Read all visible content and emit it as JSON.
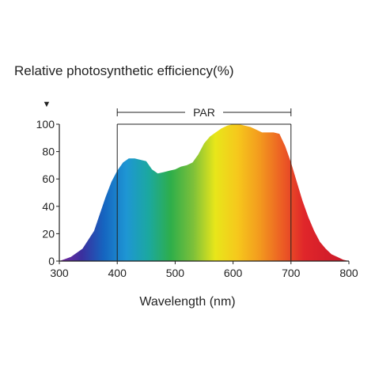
{
  "chart_data": {
    "type": "area",
    "title": "Relative photosynthetic efficiency(%)",
    "xlabel": "Wavelength (nm)",
    "ylabel": "",
    "xlim": [
      300,
      800
    ],
    "ylim": [
      0,
      100
    ],
    "xticks": [
      300,
      400,
      500,
      600,
      700,
      800
    ],
    "yticks": [
      0,
      20,
      40,
      60,
      80,
      100
    ],
    "y_axis_marker": "▼",
    "grid": false,
    "fill": "visible-spectrum gradient (violet to red)",
    "series": [
      {
        "x": [
          300,
          320,
          340,
          360,
          380,
          390,
          400,
          410,
          420,
          430,
          440,
          450,
          460,
          470,
          480,
          490,
          500,
          510,
          520,
          530,
          540,
          550,
          560,
          570,
          580,
          590,
          600,
          610,
          620,
          630,
          640,
          650,
          660,
          670,
          680,
          690,
          700,
          710,
          720,
          730,
          740,
          750,
          760,
          770,
          780,
          790,
          800
        ],
        "y": [
          0,
          3,
          9,
          22,
          47,
          58,
          66,
          72,
          75,
          75,
          74,
          73,
          67,
          64,
          65,
          66,
          67,
          69,
          70,
          72,
          78,
          86,
          91,
          94,
          97,
          99,
          100,
          100,
          99,
          98,
          96,
          94,
          94,
          94,
          93,
          84,
          72,
          58,
          44,
          32,
          22,
          14,
          9,
          5,
          3,
          1,
          0
        ]
      }
    ],
    "annotations": [
      {
        "text": "PAR",
        "x_range": [
          400,
          700
        ],
        "y_top": 100
      }
    ]
  },
  "colors": {
    "axis": "#222222",
    "spectrum": [
      "#7a2aa0",
      "#3b2f9e",
      "#1565c0",
      "#1e96d4",
      "#1ba8a0",
      "#2eae4a",
      "#7cc03a",
      "#e8e61a",
      "#f6c81c",
      "#f39a1e",
      "#ec5e24",
      "#e0262a",
      "#d41e2a",
      "#c81c2a"
    ]
  }
}
